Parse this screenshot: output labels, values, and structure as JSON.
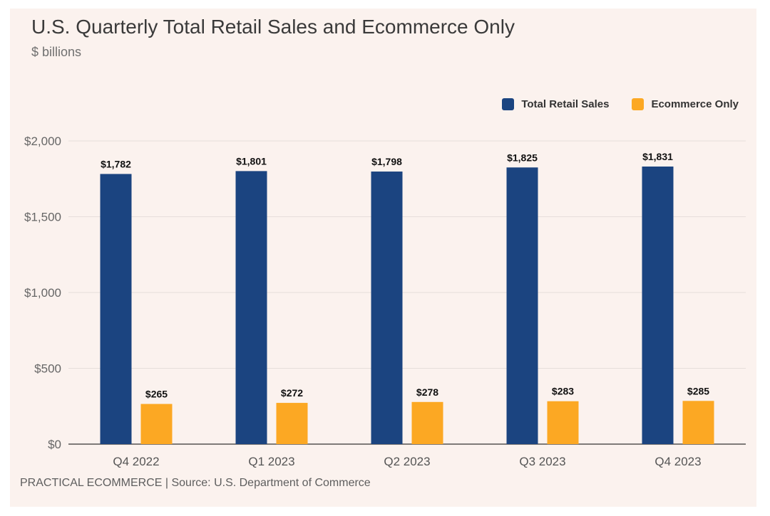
{
  "header": {
    "title": "U.S. Quarterly Total Retail Sales and Ecommerce Only",
    "subtitle": "$ billions"
  },
  "footer": {
    "source": "PRACTICAL ECOMMERCE | Source: U.S. Department of Commerce"
  },
  "colors": {
    "total": "#1b4480",
    "ecommerce": "#fca823",
    "grid": "#e6dedb"
  },
  "chart_data": {
    "type": "bar",
    "title": "U.S. Quarterly Total Retail Sales and Ecommerce Only",
    "subtitle": "$ billions",
    "xlabel": "",
    "ylabel": "",
    "ylim": [
      0,
      2000
    ],
    "yticks": [
      0,
      500,
      1000,
      1500,
      2000
    ],
    "ytick_labels": [
      "$0",
      "$500",
      "$1,000",
      "$1,500",
      "$2,000"
    ],
    "grid": true,
    "legend_position": "top-right",
    "categories": [
      "Q4 2022",
      "Q1 2023",
      "Q2 2023",
      "Q3 2023",
      "Q4 2023"
    ],
    "series": [
      {
        "name": "Total Retail Sales",
        "values": [
          1782,
          1801,
          1798,
          1825,
          1831
        ],
        "labels": [
          "$1,782",
          "$1,801",
          "$1,798",
          "$1,825",
          "$1,831"
        ]
      },
      {
        "name": "Ecommerce Only",
        "values": [
          265,
          272,
          278,
          283,
          285
        ],
        "labels": [
          "$265",
          "$272",
          "$278",
          "$283",
          "$285"
        ]
      }
    ]
  }
}
